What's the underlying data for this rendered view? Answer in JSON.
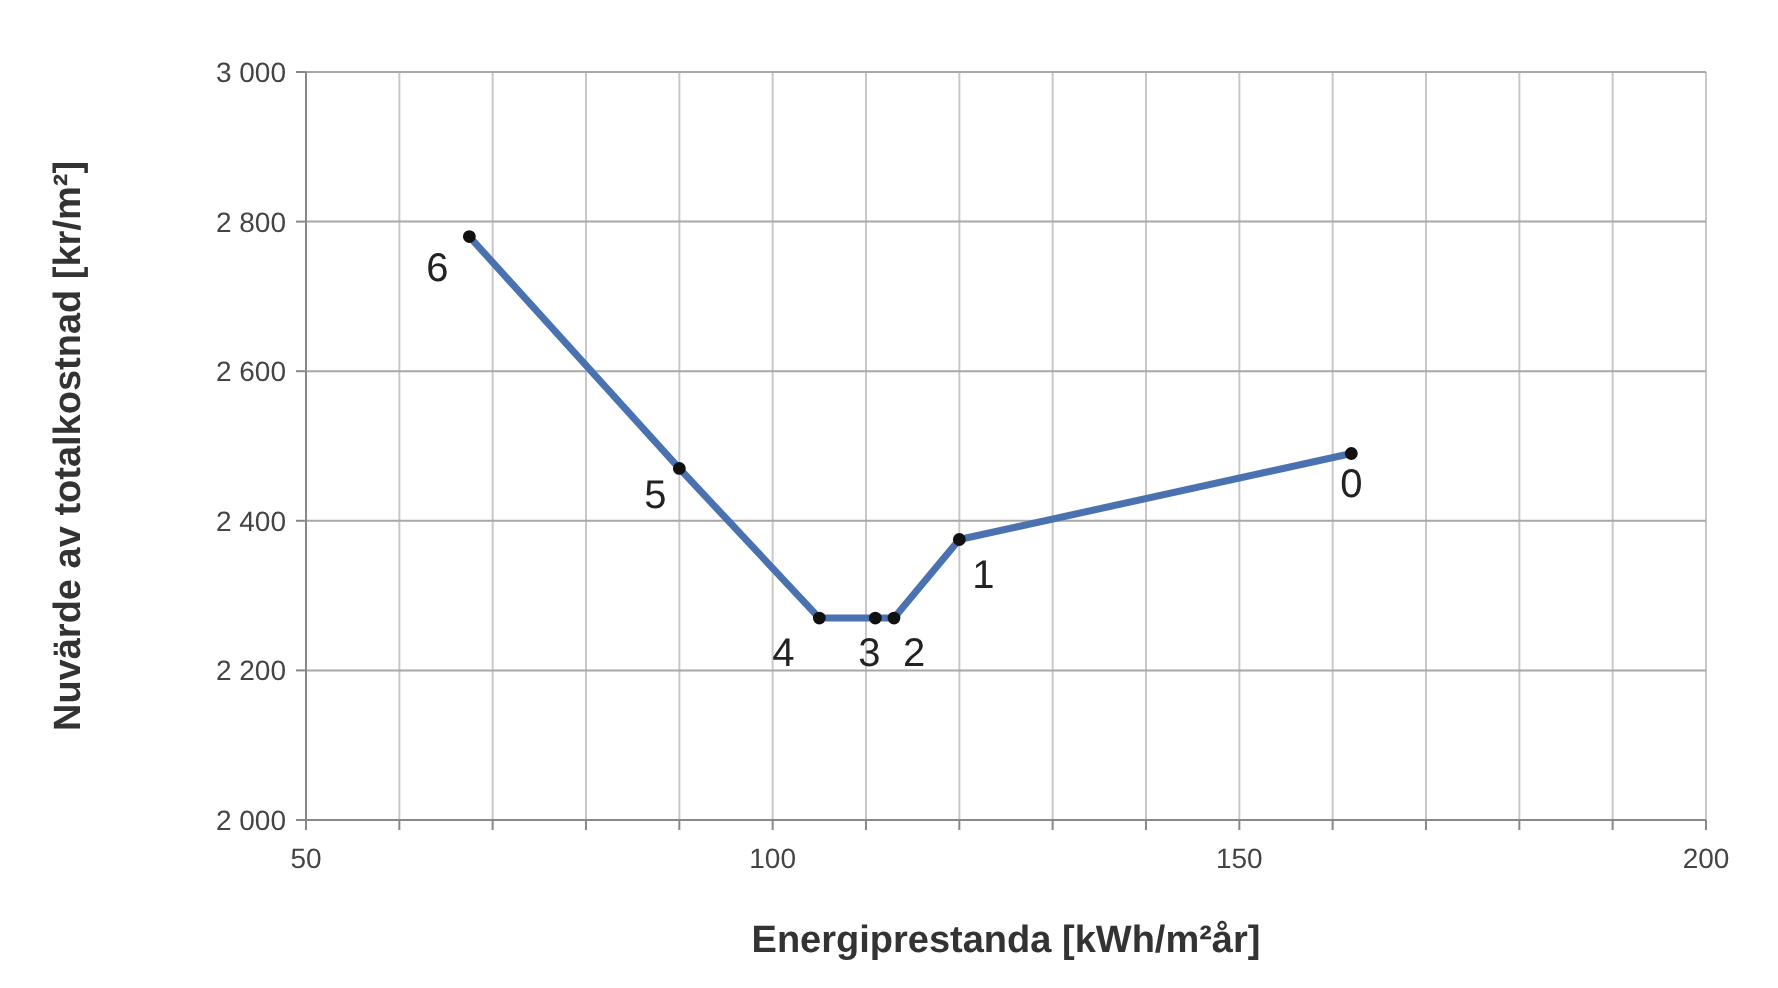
{
  "chart_data": {
    "type": "line",
    "xlabel": "Energiprestanda [kWh/m²år]",
    "ylabel": "Nuvärde av totalkostnad [kr/m²]",
    "x": [
      162,
      120,
      113,
      111,
      105,
      90,
      67.5
    ],
    "series": [
      {
        "color": "#4a72b0",
        "values": [
          2490,
          2375,
          2270,
          2270,
          2270,
          2470,
          2780
        ]
      }
    ],
    "xlim": [
      50,
      200
    ],
    "xticks": [
      50,
      {
        "value": 60,
        "label": null
      },
      {
        "value": 70,
        "label": null
      },
      {
        "value": 80,
        "label": null
      },
      {
        "value": 90,
        "label": null
      },
      100,
      {
        "value": 110,
        "label": null
      },
      {
        "value": 120,
        "label": null
      },
      {
        "value": 130,
        "label": null
      },
      {
        "value": 140,
        "label": null
      },
      150,
      {
        "value": 160,
        "label": null
      },
      {
        "value": 170,
        "label": null
      },
      {
        "value": 180,
        "label": null
      },
      {
        "value": 190,
        "label": null
      },
      200
    ],
    "ylim": [
      2000,
      3000
    ],
    "yticks": [
      {
        "value": 2000,
        "label": "2 000"
      },
      {
        "value": 2200,
        "label": "2 200"
      },
      {
        "value": 2400,
        "label": "2 400"
      },
      {
        "value": 2600,
        "label": "2 600"
      },
      {
        "value": 2800,
        "label": "2 800"
      },
      {
        "value": 3000,
        "label": "3 000"
      }
    ],
    "grid": true,
    "marker": "circle",
    "line_style": "solid",
    "annotations": [
      {
        "text": "0",
        "x": 162,
        "y": 2490
      },
      {
        "text": "1",
        "x": 120,
        "y": 2375
      },
      {
        "text": "2",
        "x": 113,
        "y": 2270
      },
      {
        "text": "3",
        "x": 111,
        "y": 2270
      },
      {
        "text": "4",
        "x": 105,
        "y": 2270
      },
      {
        "text": "5",
        "x": 90,
        "y": 2470
      },
      {
        "text": "6",
        "x": 67.5,
        "y": 2780
      }
    ]
  }
}
